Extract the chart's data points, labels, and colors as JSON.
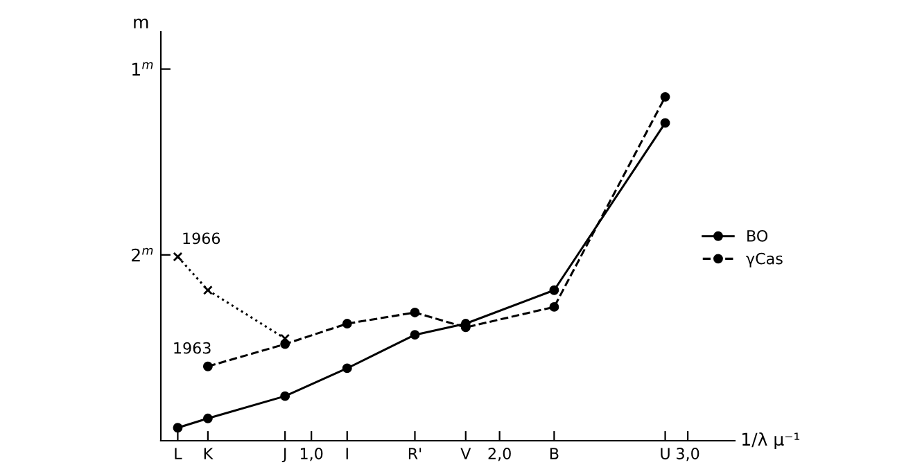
{
  "chart_data": {
    "type": "line",
    "xlabel": "1/λ μ⁻¹",
    "ylabel": "m",
    "xlim": [
      0.2,
      3.25
    ],
    "ylim": [
      3.0,
      0.8
    ],
    "xticks": [
      {
        "value": 0.29,
        "label": "L"
      },
      {
        "value": 0.45,
        "label": "K"
      },
      {
        "value": 0.86,
        "label": "J"
      },
      {
        "value": 1.0,
        "label": "1,0"
      },
      {
        "value": 1.19,
        "label": "I"
      },
      {
        "value": 1.55,
        "label": "R'"
      },
      {
        "value": 1.82,
        "label": "V"
      },
      {
        "value": 2.0,
        "label": "2,0"
      },
      {
        "value": 2.29,
        "label": "B"
      },
      {
        "value": 2.88,
        "label": "U"
      },
      {
        "value": 3.0,
        "label": "3,0"
      }
    ],
    "yticks": [
      {
        "value": 1,
        "label": "1$^{m}$"
      },
      {
        "value": 2,
        "label": "2$^{m}$"
      }
    ],
    "x": [
      0.29,
      0.45,
      0.86,
      1.19,
      1.55,
      1.82,
      2.29,
      2.88
    ],
    "series": [
      {
        "name": "BO",
        "color": "#000000",
        "marker": "circle",
        "line_style": "solid",
        "values": [
          2.93,
          2.88,
          2.76,
          2.61,
          2.43,
          2.37,
          2.19,
          1.29
        ]
      },
      {
        "name": "γCas",
        "color": "#000000",
        "marker": "circle",
        "line_style": "dashed",
        "values": [
          null,
          2.6,
          2.48,
          2.37,
          2.31,
          2.39,
          2.28,
          1.15
        ]
      },
      {
        "color": "#000000",
        "marker": "cross",
        "line_style": "dotted",
        "values": [
          2.01,
          2.19,
          2.45,
          null,
          null,
          null,
          null,
          null
        ]
      }
    ],
    "annotations": [
      {
        "text": "1966",
        "x": 0.29,
        "y": 2.01
      },
      {
        "text": "1963",
        "x": 0.45,
        "y": 2.6
      }
    ],
    "grid": false,
    "legend": "right"
  }
}
